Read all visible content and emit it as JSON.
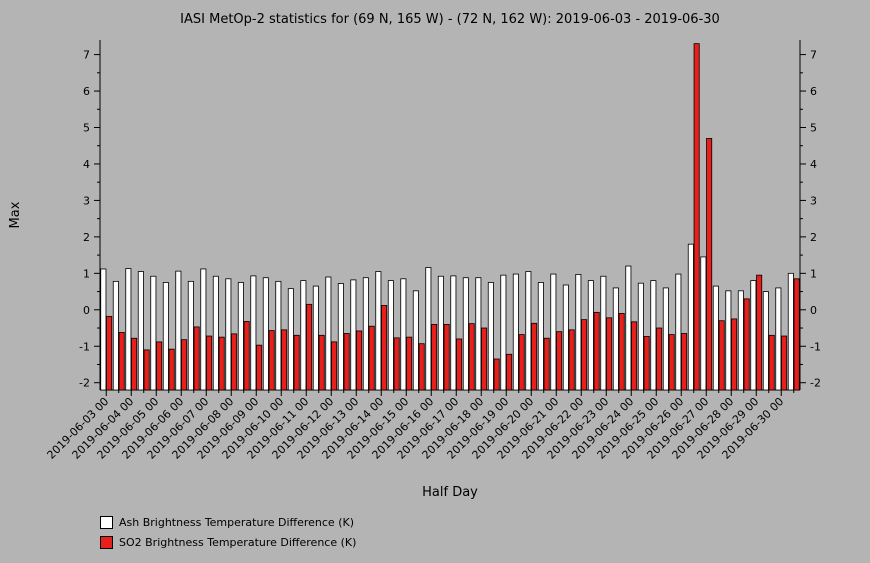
{
  "chart_data": {
    "type": "bar",
    "title": "IASI MetOp-2 statistics for (69 N, 165 W) - (72 N, 162 W): 2019-06-03 - 2019-06-30",
    "xlabel": "Half Day",
    "ylabel": "Max",
    "ylim": [
      -2.2,
      7.4
    ],
    "yticks": [
      -2,
      -1,
      0,
      1,
      2,
      3,
      4,
      5,
      6,
      7
    ],
    "grid": false,
    "legend_position": "bottom-left",
    "x_tick_labels": [
      "2019-06-03 00",
      "2019-06-04 00",
      "2019-06-05 00",
      "2019-06-06 00",
      "2019-06-07 00",
      "2019-06-08 00",
      "2019-06-09 00",
      "2019-06-10 00",
      "2019-06-11 00",
      "2019-06-12 00",
      "2019-06-13 00",
      "2019-06-14 00",
      "2019-06-15 00",
      "2019-06-16 00",
      "2019-06-17 00",
      "2019-06-18 00",
      "2019-06-19 00",
      "2019-06-20 00",
      "2019-06-21 00",
      "2019-06-22 00",
      "2019-06-23 00",
      "2019-06-24 00",
      "2019-06-25 00",
      "2019-06-26 00",
      "2019-06-27 00",
      "2019-06-28 00",
      "2019-06-29 00",
      "2019-06-30 00"
    ],
    "series": [
      {
        "name": "Ash Brightness Temperature Difference (K)",
        "color": "#ffffff",
        "values": [
          1.12,
          0.78,
          1.13,
          1.05,
          0.92,
          0.75,
          1.06,
          0.78,
          1.12,
          0.92,
          0.85,
          0.75,
          0.93,
          0.88,
          0.78,
          0.58,
          0.8,
          0.65,
          0.9,
          0.72,
          0.82,
          0.88,
          1.05,
          0.8,
          0.85,
          0.52,
          1.16,
          0.92,
          0.93,
          0.88,
          0.88,
          0.75,
          0.95,
          0.98,
          1.05,
          0.75,
          0.98,
          0.68,
          0.97,
          0.8,
          0.92,
          0.6,
          1.2,
          0.73,
          0.8,
          0.6,
          0.98,
          1.8,
          1.45,
          0.65,
          0.52,
          0.52,
          0.8,
          0.5,
          0.6,
          1.0
        ]
      },
      {
        "name": "SO2 Brightness Temperature Difference (K)",
        "color": "#e8201c",
        "values": [
          -0.18,
          -0.62,
          -0.78,
          -1.1,
          -0.88,
          -1.08,
          -0.82,
          -0.47,
          -0.72,
          -0.75,
          -0.66,
          -0.32,
          -0.97,
          -0.57,
          -0.55,
          -0.7,
          0.15,
          -0.7,
          -0.88,
          -0.65,
          -0.58,
          -0.45,
          0.12,
          -0.77,
          -0.75,
          -0.93,
          -0.4,
          -0.4,
          -0.8,
          -0.38,
          -0.5,
          -1.35,
          -1.22,
          -0.68,
          -0.37,
          -0.78,
          -0.6,
          -0.55,
          -0.27,
          -0.07,
          -0.22,
          -0.1,
          -0.33,
          -0.73,
          -0.5,
          -0.68,
          -0.65,
          7.3,
          4.7,
          -0.3,
          -0.25,
          0.3,
          0.95,
          -0.7,
          -0.72,
          0.85
        ]
      }
    ]
  }
}
